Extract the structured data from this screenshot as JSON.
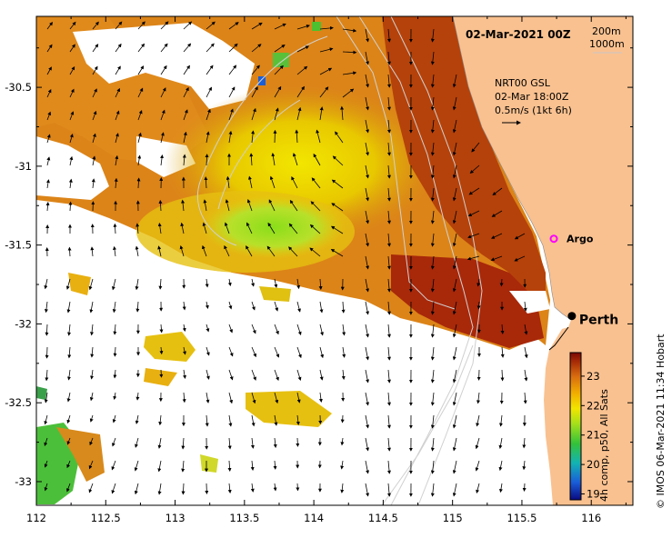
{
  "map": {
    "date_title": "02-Mar-2021 00Z",
    "isobaths": [
      "200m",
      "1000m"
    ],
    "current_info": [
      "NRT00 GSL",
      "02-Mar 18:00Z",
      "0.5m/s (1kt 6h)"
    ],
    "credit": "© IMOS 06-Mar-2021 11:34 Hobart",
    "colorbar_label": "4h comp, p50, All Sats",
    "colorbar_ticks": [
      "19",
      "20",
      "21",
      "22",
      "23"
    ],
    "colorbar_range": [
      18.8,
      23.8
    ],
    "x_ticks": [
      "112",
      "112.5",
      "113",
      "113.5",
      "114",
      "114.5",
      "115",
      "115.5",
      "116"
    ],
    "y_ticks": [
      "-30.5",
      "-31",
      "-31.5",
      "-32",
      "-32.5",
      "-33"
    ],
    "lon_range": [
      112,
      116.3
    ],
    "lat_range": [
      -33.15,
      -30.05
    ],
    "places": [
      {
        "name": "Argo",
        "lon": 115.73,
        "lat": -31.46,
        "symbol": "magenta-circle"
      },
      {
        "name": "Perth",
        "lon": 115.86,
        "lat": -31.95,
        "symbol": "black-dot"
      }
    ],
    "colors": {
      "land": "#f9c190",
      "axes": "#000000",
      "isobath": "#cccccc"
    }
  }
}
